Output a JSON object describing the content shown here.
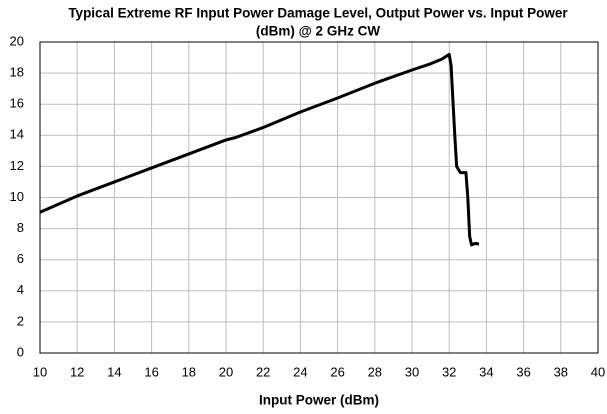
{
  "chart_data": {
    "type": "line",
    "title": [
      "Typical Extreme RF Input Power Damage Level, Output Power vs. Input Power",
      "(dBm) @ 2 GHz CW"
    ],
    "x_label": "Input Power (dBm)",
    "x": [
      10,
      12,
      14,
      16,
      18,
      20,
      20.5,
      22,
      24,
      26,
      28,
      30,
      31,
      31.6,
      32,
      32.1,
      32.3,
      32.4,
      32.6,
      32.9,
      33.0,
      33.1,
      33.2,
      33.4,
      33.6
    ],
    "series": [
      {
        "color": "#000000",
        "values": [
          9.05,
          10.1,
          11.0,
          11.9,
          12.8,
          13.7,
          13.85,
          14.5,
          15.5,
          16.4,
          17.35,
          18.2,
          18.6,
          18.9,
          19.2,
          18.5,
          14.0,
          12.0,
          11.6,
          11.6,
          10.0,
          7.5,
          6.95,
          7.05,
          7.0
        ]
      }
    ],
    "xlim": [
      10,
      40
    ],
    "xticks": [
      10,
      12,
      14,
      16,
      18,
      20,
      22,
      24,
      26,
      28,
      30,
      32,
      34,
      36,
      38,
      40
    ],
    "ylim": [
      0,
      20
    ],
    "yticks": [
      0,
      2,
      4,
      6,
      8,
      10,
      12,
      14,
      16,
      18,
      20
    ],
    "grid": true
  }
}
